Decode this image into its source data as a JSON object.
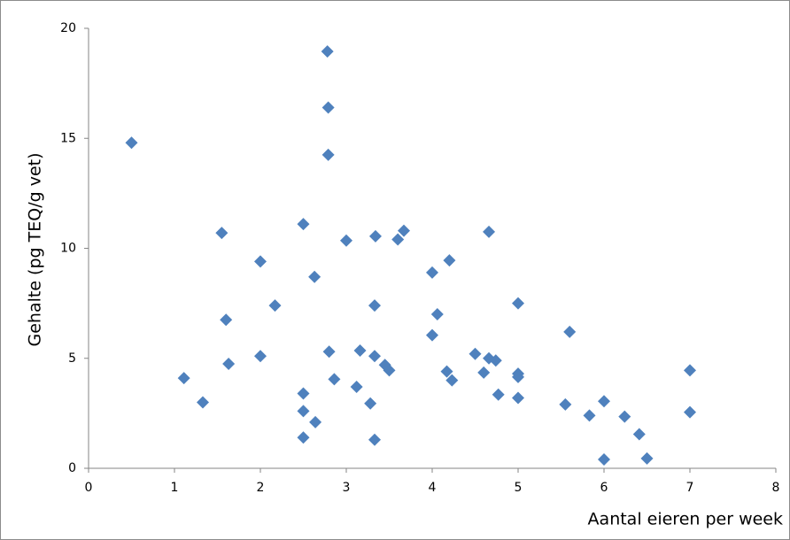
{
  "chart_data": {
    "type": "scatter",
    "x_label": "Aantal eieren per week",
    "y_label": "Gehalte (pg TEQ/g vet)",
    "color": "#4f81bd",
    "marker": "diamond",
    "grid": false,
    "xlim": [
      0,
      8
    ],
    "xticks": [
      0,
      1,
      2,
      3,
      4,
      5,
      6,
      7,
      8
    ],
    "ylim": [
      0,
      20
    ],
    "yticks": [
      0,
      5,
      10,
      15,
      20
    ],
    "x": [
      0.5,
      1.11,
      1.33,
      1.55,
      1.6,
      1.63,
      2,
      2,
      2.17,
      2.5,
      2.5,
      2.5,
      2.5,
      2.63,
      2.64,
      2.78,
      2.79,
      2.79,
      2.8,
      2.86,
      3.0,
      3.12,
      3.16,
      3.28,
      3.34,
      3.33,
      3.33,
      3.33,
      3.45,
      3.5,
      3.6,
      3.67,
      4.0,
      4.0,
      4.06,
      4.2,
      4.17,
      4.23,
      4.5,
      4.6,
      4.66,
      4.66,
      4.74,
      4.77,
      5,
      5,
      5,
      5,
      5.55,
      5.6,
      5.83,
      6.0,
      6.0,
      6.24,
      6.41,
      6.5,
      7,
      7
    ],
    "values": [
      14.8,
      4.1,
      3.0,
      10.7,
      6.75,
      4.75,
      9.4,
      5.1,
      7.4,
      11.1,
      3.4,
      2.6,
      1.4,
      8.7,
      2.1,
      18.95,
      16.4,
      14.25,
      5.3,
      4.05,
      10.35,
      3.7,
      5.35,
      2.95,
      10.55,
      7.4,
      5.1,
      1.3,
      4.7,
      4.45,
      10.4,
      10.8,
      8.9,
      6.05,
      7.0,
      9.45,
      4.4,
      4.0,
      5.2,
      4.35,
      10.75,
      5.0,
      4.9,
      3.35,
      7.5,
      4.3,
      4.15,
      3.2,
      2.9,
      6.2,
      2.4,
      3.05,
      0.4,
      2.35,
      1.55,
      0.45,
      4.45,
      2.55
    ]
  }
}
